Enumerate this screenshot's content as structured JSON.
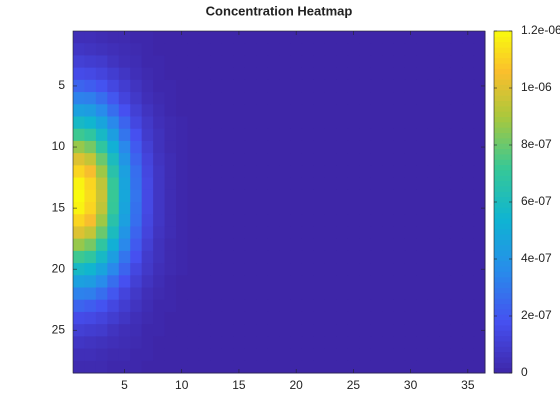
{
  "chart_data": {
    "type": "heatmap",
    "title": "Concentration Heatmap",
    "colormap": "parula",
    "xlim": [
      0.5,
      36.5
    ],
    "xticks": [
      5,
      10,
      15,
      20,
      25,
      30,
      35
    ],
    "ylim": [
      0.5,
      28.5
    ],
    "yticks": [
      5,
      10,
      15,
      20,
      25
    ],
    "y_reversed": true,
    "clim": [
      0,
      1.2e-06
    ],
    "cticks": [
      0,
      {
        "value": 2e-07,
        "label": "2e-07"
      },
      {
        "value": 4e-07,
        "label": "4e-07"
      },
      {
        "value": 6e-07,
        "label": "6e-07"
      },
      {
        "value": 8e-07,
        "label": "8e-07"
      },
      {
        "value": 1e-06,
        "label": "1e-06"
      },
      {
        "value": 1.2e-06,
        "label": "1.2e-06"
      }
    ],
    "z": [
      [
        4e-08,
        4e-08,
        3e-08,
        2e-08,
        2e-08,
        1e-08,
        1e-08,
        0,
        0,
        0,
        0,
        0,
        0,
        0,
        0,
        0,
        0,
        0,
        0,
        0,
        0,
        0,
        0,
        0,
        0,
        0,
        0,
        0,
        0,
        0,
        0,
        0,
        0,
        0,
        0,
        0
      ],
      [
        7e-08,
        6e-08,
        5e-08,
        4e-08,
        3e-08,
        2e-08,
        1e-08,
        0,
        0,
        0,
        0,
        0,
        0,
        0,
        0,
        0,
        0,
        0,
        0,
        0,
        0,
        0,
        0,
        0,
        0,
        0,
        0,
        0,
        0,
        0,
        0,
        0,
        0,
        0,
        0,
        0
      ],
      [
        1.1e-07,
        1e-07,
        9e-08,
        6e-08,
        4e-08,
        3e-08,
        1e-08,
        1e-08,
        0,
        0,
        0,
        0,
        0,
        0,
        0,
        0,
        0,
        0,
        0,
        0,
        0,
        0,
        0,
        0,
        0,
        0,
        0,
        0,
        0,
        0,
        0,
        0,
        0,
        0,
        0,
        0
      ],
      [
        1.6e-07,
        1.5e-07,
        1.3e-07,
        1e-07,
        7e-08,
        4e-08,
        2e-08,
        1e-08,
        0,
        0,
        0,
        0,
        0,
        0,
        0,
        0,
        0,
        0,
        0,
        0,
        0,
        0,
        0,
        0,
        0,
        0,
        0,
        0,
        0,
        0,
        0,
        0,
        0,
        0,
        0,
        0
      ],
      [
        2.4e-07,
        2.2e-07,
        1.9e-07,
        1.4e-07,
        1e-07,
        6e-08,
        3e-08,
        1e-08,
        1e-08,
        0,
        0,
        0,
        0,
        0,
        0,
        0,
        0,
        0,
        0,
        0,
        0,
        0,
        0,
        0,
        0,
        0,
        0,
        0,
        0,
        0,
        0,
        0,
        0,
        0,
        0,
        0
      ],
      [
        3.3e-07,
        3.2e-07,
        2.7e-07,
        2e-07,
        1.3e-07,
        8e-08,
        4e-08,
        2e-08,
        1e-08,
        0,
        0,
        0,
        0,
        0,
        0,
        0,
        0,
        0,
        0,
        0,
        0,
        0,
        0,
        0,
        0,
        0,
        0,
        0,
        0,
        0,
        0,
        0,
        0,
        0,
        0,
        0
      ],
      [
        4.5e-07,
        4.3e-07,
        3.6e-07,
        2.7e-07,
        1.8e-07,
        1.1e-07,
        6e-08,
        3e-08,
        1e-08,
        0,
        0,
        0,
        0,
        0,
        0,
        0,
        0,
        0,
        0,
        0,
        0,
        0,
        0,
        0,
        0,
        0,
        0,
        0,
        0,
        0,
        0,
        0,
        0,
        0,
        0,
        0
      ],
      [
        5.8e-07,
        5.5e-07,
        4.7e-07,
        3.5e-07,
        2.4e-07,
        1.4e-07,
        8e-08,
        4e-08,
        2e-08,
        1e-08,
        0,
        0,
        0,
        0,
        0,
        0,
        0,
        0,
        0,
        0,
        0,
        0,
        0,
        0,
        0,
        0,
        0,
        0,
        0,
        0,
        0,
        0,
        0,
        0,
        0,
        0
      ],
      [
        7.3e-07,
        6.9e-07,
        5.8e-07,
        4.4e-07,
        2.9e-07,
        1.8e-07,
        9e-08,
        5e-08,
        2e-08,
        1e-08,
        0,
        0,
        0,
        0,
        0,
        0,
        0,
        0,
        0,
        0,
        0,
        0,
        0,
        0,
        0,
        0,
        0,
        0,
        0,
        0,
        0,
        0,
        0,
        0,
        0,
        0
      ],
      [
        8.7e-07,
        8.2e-07,
        6.9e-07,
        5.2e-07,
        3.5e-07,
        2.1e-07,
        1.1e-07,
        5e-08,
        2e-08,
        1e-08,
        0,
        0,
        0,
        0,
        0,
        0,
        0,
        0,
        0,
        0,
        0,
        0,
        0,
        0,
        0,
        0,
        0,
        0,
        0,
        0,
        0,
        0,
        0,
        0,
        0,
        0
      ],
      [
        1e-06,
        9.5e-07,
        8e-07,
        6e-07,
        4e-07,
        2.4e-07,
        1.3e-07,
        6e-08,
        3e-08,
        1e-08,
        0,
        0,
        0,
        0,
        0,
        0,
        0,
        0,
        0,
        0,
        0,
        0,
        0,
        0,
        0,
        0,
        0,
        0,
        0,
        0,
        0,
        0,
        0,
        0,
        0,
        0
      ],
      [
        1.11e-06,
        1.05e-06,
        8.8e-07,
        6.6e-07,
        4.5e-07,
        2.7e-07,
        1.4e-07,
        7e-08,
        3e-08,
        1e-08,
        0,
        0,
        0,
        0,
        0,
        0,
        0,
        0,
        0,
        0,
        0,
        0,
        0,
        0,
        0,
        0,
        0,
        0,
        0,
        0,
        0,
        0,
        0,
        0,
        0,
        0
      ],
      [
        1.18e-06,
        1.11e-06,
        9.4e-07,
        7.1e-07,
        4.7e-07,
        2.8e-07,
        1.5e-07,
        7e-08,
        3e-08,
        1e-08,
        0,
        0,
        0,
        0,
        0,
        0,
        0,
        0,
        0,
        0,
        0,
        0,
        0,
        0,
        0,
        0,
        0,
        0,
        0,
        0,
        0,
        0,
        0,
        0,
        0,
        0
      ],
      [
        1.2e-06,
        1.13e-06,
        9.6e-07,
        7.2e-07,
        4.8e-07,
        2.9e-07,
        1.5e-07,
        7e-08,
        3e-08,
        1e-08,
        0,
        0,
        0,
        0,
        0,
        0,
        0,
        0,
        0,
        0,
        0,
        0,
        0,
        0,
        0,
        0,
        0,
        0,
        0,
        0,
        0,
        0,
        0,
        0,
        0,
        0
      ],
      [
        1.18e-06,
        1.11e-06,
        9.4e-07,
        7.1e-07,
        4.7e-07,
        2.8e-07,
        1.5e-07,
        7e-08,
        3e-08,
        1e-08,
        0,
        0,
        0,
        0,
        0,
        0,
        0,
        0,
        0,
        0,
        0,
        0,
        0,
        0,
        0,
        0,
        0,
        0,
        0,
        0,
        0,
        0,
        0,
        0,
        0,
        0
      ],
      [
        1.11e-06,
        1.05e-06,
        8.8e-07,
        6.6e-07,
        4.5e-07,
        2.7e-07,
        1.4e-07,
        7e-08,
        3e-08,
        1e-08,
        0,
        0,
        0,
        0,
        0,
        0,
        0,
        0,
        0,
        0,
        0,
        0,
        0,
        0,
        0,
        0,
        0,
        0,
        0,
        0,
        0,
        0,
        0,
        0,
        0,
        0
      ],
      [
        1e-06,
        9.5e-07,
        8e-07,
        6e-07,
        4e-07,
        2.4e-07,
        1.3e-07,
        6e-08,
        3e-08,
        1e-08,
        0,
        0,
        0,
        0,
        0,
        0,
        0,
        0,
        0,
        0,
        0,
        0,
        0,
        0,
        0,
        0,
        0,
        0,
        0,
        0,
        0,
        0,
        0,
        0,
        0,
        0
      ],
      [
        8.7e-07,
        8.2e-07,
        6.9e-07,
        5.2e-07,
        3.5e-07,
        2.1e-07,
        1.1e-07,
        5e-08,
        2e-08,
        1e-08,
        0,
        0,
        0,
        0,
        0,
        0,
        0,
        0,
        0,
        0,
        0,
        0,
        0,
        0,
        0,
        0,
        0,
        0,
        0,
        0,
        0,
        0,
        0,
        0,
        0,
        0
      ],
      [
        7.3e-07,
        6.9e-07,
        5.8e-07,
        4.4e-07,
        2.9e-07,
        1.8e-07,
        9e-08,
        5e-08,
        2e-08,
        1e-08,
        0,
        0,
        0,
        0,
        0,
        0,
        0,
        0,
        0,
        0,
        0,
        0,
        0,
        0,
        0,
        0,
        0,
        0,
        0,
        0,
        0,
        0,
        0,
        0,
        0,
        0
      ],
      [
        5.8e-07,
        5.5e-07,
        4.7e-07,
        3.5e-07,
        2.4e-07,
        1.4e-07,
        8e-08,
        4e-08,
        2e-08,
        1e-08,
        0,
        0,
        0,
        0,
        0,
        0,
        0,
        0,
        0,
        0,
        0,
        0,
        0,
        0,
        0,
        0,
        0,
        0,
        0,
        0,
        0,
        0,
        0,
        0,
        0,
        0
      ],
      [
        4.5e-07,
        4.3e-07,
        3.6e-07,
        2.7e-07,
        1.8e-07,
        1.1e-07,
        6e-08,
        3e-08,
        1e-08,
        0,
        0,
        0,
        0,
        0,
        0,
        0,
        0,
        0,
        0,
        0,
        0,
        0,
        0,
        0,
        0,
        0,
        0,
        0,
        0,
        0,
        0,
        0,
        0,
        0,
        0,
        0
      ],
      [
        3.3e-07,
        3.2e-07,
        2.7e-07,
        2e-07,
        1.3e-07,
        8e-08,
        4e-08,
        2e-08,
        1e-08,
        0,
        0,
        0,
        0,
        0,
        0,
        0,
        0,
        0,
        0,
        0,
        0,
        0,
        0,
        0,
        0,
        0,
        0,
        0,
        0,
        0,
        0,
        0,
        0,
        0,
        0,
        0
      ],
      [
        2.4e-07,
        2.2e-07,
        1.9e-07,
        1.4e-07,
        1e-07,
        6e-08,
        3e-08,
        1e-08,
        1e-08,
        0,
        0,
        0,
        0,
        0,
        0,
        0,
        0,
        0,
        0,
        0,
        0,
        0,
        0,
        0,
        0,
        0,
        0,
        0,
        0,
        0,
        0,
        0,
        0,
        0,
        0,
        0
      ],
      [
        1.6e-07,
        1.5e-07,
        1.3e-07,
        1e-07,
        7e-08,
        4e-08,
        2e-08,
        1e-08,
        0,
        0,
        0,
        0,
        0,
        0,
        0,
        0,
        0,
        0,
        0,
        0,
        0,
        0,
        0,
        0,
        0,
        0,
        0,
        0,
        0,
        0,
        0,
        0,
        0,
        0,
        0,
        0
      ],
      [
        1.1e-07,
        1e-07,
        9e-08,
        6e-08,
        4e-08,
        3e-08,
        1e-08,
        1e-08,
        0,
        0,
        0,
        0,
        0,
        0,
        0,
        0,
        0,
        0,
        0,
        0,
        0,
        0,
        0,
        0,
        0,
        0,
        0,
        0,
        0,
        0,
        0,
        0,
        0,
        0,
        0,
        0
      ],
      [
        7e-08,
        6e-08,
        5e-08,
        4e-08,
        3e-08,
        2e-08,
        1e-08,
        0,
        0,
        0,
        0,
        0,
        0,
        0,
        0,
        0,
        0,
        0,
        0,
        0,
        0,
        0,
        0,
        0,
        0,
        0,
        0,
        0,
        0,
        0,
        0,
        0,
        0,
        0,
        0,
        0
      ],
      [
        4e-08,
        4e-08,
        3e-08,
        2e-08,
        2e-08,
        1e-08,
        1e-08,
        0,
        0,
        0,
        0,
        0,
        0,
        0,
        0,
        0,
        0,
        0,
        0,
        0,
        0,
        0,
        0,
        0,
        0,
        0,
        0,
        0,
        0,
        0,
        0,
        0,
        0,
        0,
        0,
        0
      ],
      [
        2e-08,
        2e-08,
        2e-08,
        1e-08,
        1e-08,
        1e-08,
        0,
        0,
        0,
        0,
        0,
        0,
        0,
        0,
        0,
        0,
        0,
        0,
        0,
        0,
        0,
        0,
        0,
        0,
        0,
        0,
        0,
        0,
        0,
        0,
        0,
        0,
        0,
        0,
        0,
        0
      ]
    ]
  }
}
